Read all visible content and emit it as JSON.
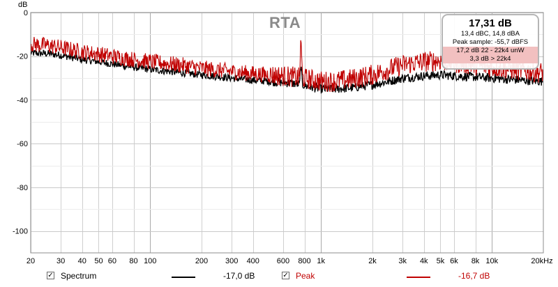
{
  "chart_data": {
    "type": "line",
    "title": "RTA",
    "ylabel": "dB",
    "xunit_label": "20kHz",
    "x_scale": "log",
    "xlim": [
      20,
      20000
    ],
    "ylim": [
      -110,
      0
    ],
    "grid": true,
    "y_ticks": [
      "0",
      "-20",
      "-40",
      "-60",
      "-80",
      "-100"
    ],
    "y_tick_values": [
      0,
      -20,
      -40,
      -60,
      -80,
      -100
    ],
    "x_ticks": [
      {
        "v": 20,
        "t": "20"
      },
      {
        "v": 30,
        "t": "30"
      },
      {
        "v": 40,
        "t": "40"
      },
      {
        "v": 50,
        "t": "50"
      },
      {
        "v": 60,
        "t": "60"
      },
      {
        "v": 80,
        "t": "80"
      },
      {
        "v": 100,
        "t": "100"
      },
      {
        "v": 200,
        "t": "200"
      },
      {
        "v": 300,
        "t": "300"
      },
      {
        "v": 400,
        "t": "400"
      },
      {
        "v": 600,
        "t": "600"
      },
      {
        "v": 800,
        "t": "800"
      },
      {
        "v": 1000,
        "t": "1k"
      },
      {
        "v": 2000,
        "t": "2k"
      },
      {
        "v": 3000,
        "t": "3k"
      },
      {
        "v": 4000,
        "t": "4k"
      },
      {
        "v": 5000,
        "t": "5k"
      },
      {
        "v": 6000,
        "t": "6k"
      },
      {
        "v": 8000,
        "t": "8k"
      },
      {
        "v": 10000,
        "t": "10k"
      }
    ],
    "series": [
      {
        "name": "Spectrum",
        "color": "#000000",
        "x": [
          20,
          25,
          30,
          40,
          50,
          60,
          80,
          100,
          150,
          200,
          300,
          400,
          500,
          600,
          700,
          750,
          760,
          780,
          850,
          1000,
          1200,
          1500,
          2000,
          2500,
          3000,
          4000,
          5000,
          6000,
          8000,
          10000,
          15000,
          20000
        ],
        "y": [
          -18.5,
          -18.8,
          -19.5,
          -21.5,
          -22.5,
          -23.5,
          -25,
          -26,
          -27.5,
          -28.5,
          -30,
          -31,
          -31.5,
          -32,
          -32.5,
          -33,
          -24,
          -33,
          -34,
          -35,
          -35,
          -34.5,
          -33,
          -31.5,
          -30,
          -29,
          -28.5,
          -29,
          -29.5,
          -30,
          -31,
          -31.5
        ]
      },
      {
        "name": "Peak",
        "color": "#c00000",
        "x": [
          20,
          25,
          30,
          40,
          50,
          60,
          80,
          100,
          150,
          200,
          300,
          400,
          500,
          600,
          700,
          750,
          760,
          780,
          850,
          1000,
          1200,
          1500,
          2000,
          2500,
          3000,
          4000,
          5000,
          6000,
          8000,
          10000,
          15000,
          20000
        ],
        "y": [
          -14.5,
          -15,
          -16,
          -18,
          -19,
          -20,
          -21.5,
          -22.5,
          -24,
          -25.5,
          -27,
          -28,
          -28.5,
          -29,
          -29.5,
          -30,
          -12,
          -30,
          -30.5,
          -31.5,
          -31.5,
          -30.5,
          -28.5,
          -26,
          -24,
          -22.5,
          -22,
          -23,
          -24,
          -25,
          -26.5,
          -27.5
        ]
      }
    ]
  },
  "info_box": {
    "main": "17,31 dB",
    "line1": "13,4 dBC, 14,8 dBA",
    "line2": "Peak sample: -55,7 dBFS",
    "line3": "17,2 dB 22 - 22k4 unW",
    "line4": "3,3 dB > 22k4"
  },
  "legend": {
    "spectrum_label": "Spectrum",
    "spectrum_value": "-17,0 dB",
    "spectrum_checked": true,
    "peak_label": "Peak",
    "peak_value": "-16,7 dB",
    "peak_checked": true,
    "spectrum_color": "#000000",
    "peak_color": "#c00000",
    "peak_text_color": "#c00000",
    "check_mark": "✓"
  }
}
